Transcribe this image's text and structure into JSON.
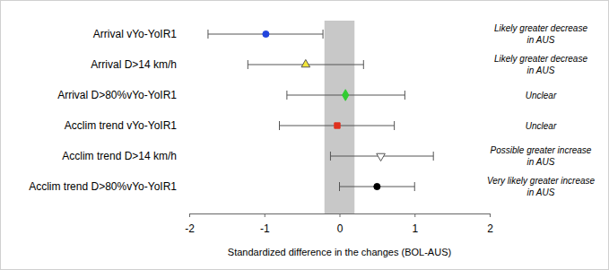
{
  "chart_data": {
    "type": "forest",
    "x_label": "Standardized difference in the changes (BOL-AUS)",
    "categories": [
      "Arrival vYo-YoIR1",
      "Arrival D>14 km/h",
      "Arrival D>80%vYo-YoIR1",
      "Acclim trend vYo-YoIR1",
      "Acclim trend D>14 km/h",
      "Acclim trend D>80%vYo-YoIR1"
    ],
    "values": [
      -0.98,
      -0.45,
      0.08,
      -0.03,
      0.55,
      0.5
    ],
    "lower": [
      -1.75,
      -1.22,
      -0.7,
      -0.8,
      -0.12,
      0.0
    ],
    "upper": [
      -0.22,
      0.32,
      0.87,
      0.73,
      1.25,
      1.0
    ],
    "colors": [
      "#2244dd",
      "#f2e63a",
      "#33cc33",
      "#e0301e",
      "#ffffff",
      "#000000"
    ],
    "markers": [
      "circle",
      "triangle-up",
      "diamond",
      "square",
      "triangle-down",
      "circle"
    ],
    "band": [
      -0.2,
      0.2
    ],
    "annotations": [
      [
        "Likely greater decrease",
        "in AUS"
      ],
      [
        "Likely greater decrease",
        "in AUS"
      ],
      [
        "Unclear"
      ],
      [
        "Unclear"
      ],
      [
        "Possible greater increase",
        "in AUS"
      ],
      [
        "Very likely greater increase",
        "in AUS"
      ]
    ],
    "xlim": [
      -2,
      2
    ],
    "xticks": [
      -2,
      -1,
      0,
      1,
      2
    ]
  }
}
